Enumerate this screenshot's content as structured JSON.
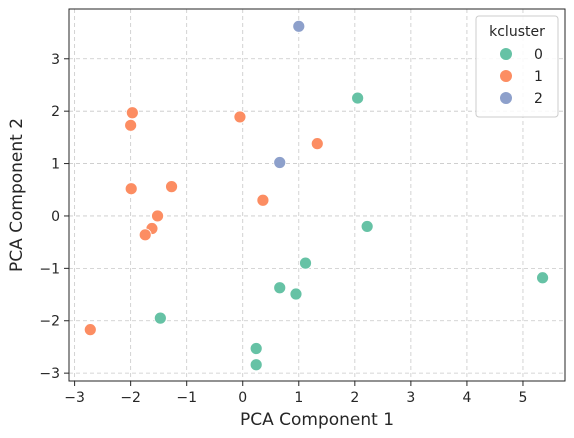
{
  "chart_data": {
    "type": "scatter",
    "title": "",
    "xlabel": "PCA Component 1",
    "ylabel": "PCA Component 2",
    "xlim": [
      -3.1,
      5.75
    ],
    "ylim": [
      -3.15,
      3.95
    ],
    "xticks": [
      -3,
      -2,
      -1,
      0,
      1,
      2,
      3,
      4,
      5
    ],
    "yticks": [
      -3,
      -2,
      -1,
      0,
      1,
      2,
      3
    ],
    "xtick_labels": [
      "−3",
      "−2",
      "−1",
      "0",
      "1",
      "2",
      "3",
      "4",
      "5"
    ],
    "ytick_labels": [
      "−3",
      "−2",
      "−1",
      "0",
      "1",
      "2",
      "3"
    ],
    "grid": true,
    "legend": {
      "title": "kcluster",
      "placement": "top-right"
    },
    "series": [
      {
        "name": "0",
        "color": "#66c2a5",
        "points": [
          {
            "x": 2.05,
            "y": 2.25
          },
          {
            "x": 2.22,
            "y": -0.2
          },
          {
            "x": 1.12,
            "y": -0.9
          },
          {
            "x": 0.66,
            "y": -1.37
          },
          {
            "x": 0.95,
            "y": -1.49
          },
          {
            "x": 5.35,
            "y": -1.18
          },
          {
            "x": -1.47,
            "y": -1.95
          },
          {
            "x": 0.24,
            "y": -2.53
          },
          {
            "x": 0.24,
            "y": -2.84
          }
        ]
      },
      {
        "name": "1",
        "color": "#fc8d62",
        "points": [
          {
            "x": -1.97,
            "y": 1.97
          },
          {
            "x": -2.0,
            "y": 1.73
          },
          {
            "x": -0.05,
            "y": 1.89
          },
          {
            "x": 1.33,
            "y": 1.38
          },
          {
            "x": -1.27,
            "y": 0.56
          },
          {
            "x": -1.99,
            "y": 0.52
          },
          {
            "x": 0.36,
            "y": 0.3
          },
          {
            "x": -1.52,
            "y": 0.0
          },
          {
            "x": -1.62,
            "y": -0.24
          },
          {
            "x": -1.74,
            "y": -0.36
          },
          {
            "x": -2.72,
            "y": -2.17
          }
        ]
      },
      {
        "name": "2",
        "color": "#8da0cb",
        "points": [
          {
            "x": 1.0,
            "y": 3.62
          },
          {
            "x": 0.66,
            "y": 1.02
          }
        ]
      }
    ]
  }
}
